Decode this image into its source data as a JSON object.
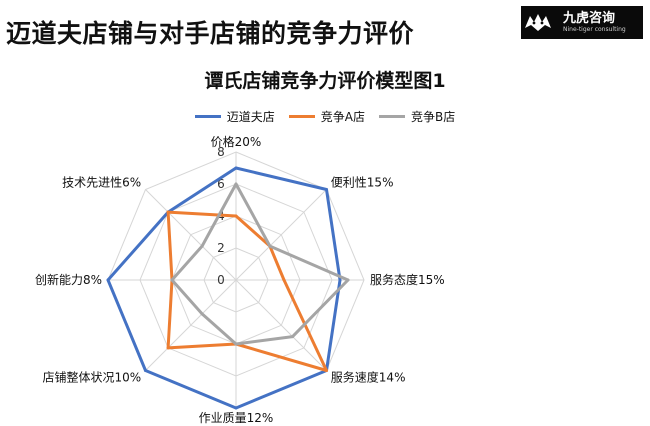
{
  "slide": {
    "title": "迈道夫店铺与对手店铺的竞争力评价"
  },
  "logo": {
    "name": "九虎咨询",
    "tagline": "Nine-tiger consulting"
  },
  "chart_data": {
    "type": "radar",
    "title": "谭氏店铺竞争力评价模型图1",
    "axes": [
      "价格20%",
      "便利性15%",
      "服务态度15%",
      "服务速度14%",
      "作业质量12%",
      "店铺整体状况10%",
      "创新能力8%",
      "技术先进性6%"
    ],
    "scale": {
      "min": 0,
      "max": 8,
      "ticks": [
        0,
        2,
        4,
        6,
        8
      ]
    },
    "legend_position": "top",
    "series": [
      {
        "name": "迈道夫店",
        "color": "#4472C4",
        "values": [
          7,
          8,
          6.5,
          8,
          8,
          8,
          8,
          6
        ]
      },
      {
        "name": "竞争A店",
        "color": "#ED7D31",
        "values": [
          4,
          3,
          3,
          8,
          4,
          6,
          4,
          6
        ]
      },
      {
        "name": "竞争B店",
        "color": "#A5A5A5",
        "values": [
          6,
          3,
          7,
          5,
          4,
          3,
          4,
          3
        ]
      }
    ]
  }
}
